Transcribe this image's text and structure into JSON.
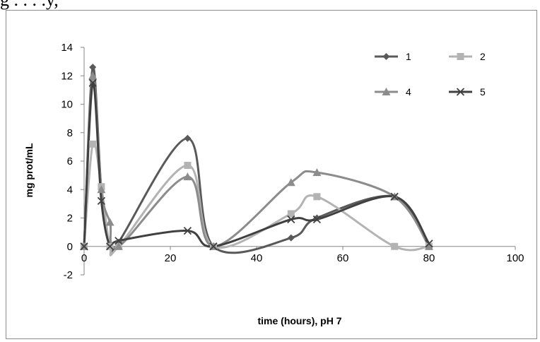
{
  "page": {
    "top_text": "g . . . .y,"
  },
  "chart_data": {
    "type": "line",
    "title": "",
    "xlabel": "time (hours), pH 7",
    "ylabel": "mg prot/mL",
    "xlim": [
      0,
      100
    ],
    "ylim": [
      -2,
      14
    ],
    "xticks": [
      "0",
      "20",
      "40",
      "60",
      "80",
      "100"
    ],
    "yticks": [
      "-2",
      "0",
      "2",
      "4",
      "6",
      "8",
      "10",
      "12",
      "14"
    ],
    "grid": false,
    "legend_position": "top-right",
    "series": [
      {
        "name": "1",
        "color": "#595959",
        "marker": "diamond",
        "x": [
          0,
          2,
          4,
          6,
          8,
          24,
          30,
          48,
          54,
          72,
          80
        ],
        "y": [
          0,
          12.6,
          4.0,
          0,
          0.3,
          7.6,
          0,
          0.6,
          2.0,
          3.5,
          0
        ]
      },
      {
        "name": "2",
        "color": "#b3b3b3",
        "marker": "square",
        "x": [
          0,
          2,
          4,
          6,
          8,
          24,
          30,
          48,
          54,
          72,
          80
        ],
        "y": [
          0,
          7.2,
          4.2,
          0,
          0,
          5.7,
          0,
          2.3,
          3.5,
          0,
          0
        ]
      },
      {
        "name": "4",
        "color": "#8c8c8c",
        "marker": "triangle",
        "x": [
          0,
          2,
          4,
          6,
          8,
          24,
          30,
          48,
          54,
          72,
          80
        ],
        "y": [
          0,
          12.0,
          4.0,
          1.7,
          0,
          4.9,
          0,
          4.5,
          5.2,
          3.5,
          0
        ]
      },
      {
        "name": "5",
        "color": "#404040",
        "marker": "x",
        "x": [
          0,
          2,
          4,
          6,
          8,
          24,
          30,
          48,
          54,
          72,
          80
        ],
        "y": [
          0,
          11.5,
          3.2,
          0,
          0.4,
          1.1,
          0,
          1.9,
          1.9,
          3.5,
          0.2
        ]
      }
    ]
  }
}
